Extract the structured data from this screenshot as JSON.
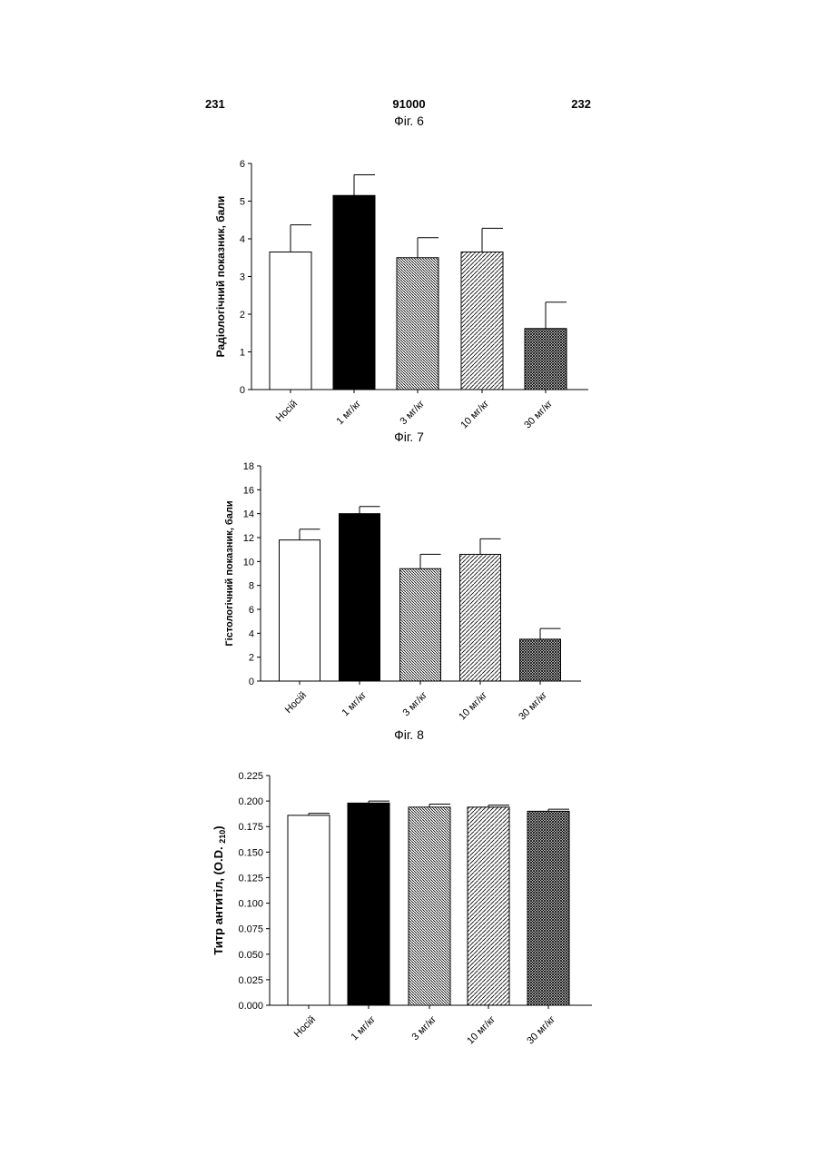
{
  "header": {
    "left": "231",
    "center": "91000",
    "right": "232"
  },
  "figures": [
    "Фіг. 6",
    "Фіг. 7",
    "Фіг. 8"
  ],
  "colors": {
    "ink": "#000000",
    "paper": "#ffffff"
  },
  "chart_data": [
    {
      "type": "bar",
      "categories": [
        "Носій",
        "1 мг/кг",
        "3 мг/кг",
        "10 мг/кг",
        "30 мг/кг"
      ],
      "values": [
        3.65,
        5.15,
        3.5,
        3.65,
        1.62
      ],
      "errors": [
        0.72,
        0.55,
        0.53,
        0.63,
        0.7
      ],
      "fills": [
        "white",
        "black",
        "diag-dense",
        "diag-wide",
        "crosshatch"
      ],
      "ylabel": "Радіологічний показник, бали",
      "xlabel": "",
      "ylim": [
        0,
        6
      ],
      "yticks": [
        0,
        1,
        2,
        3,
        4,
        5,
        6
      ],
      "grid": false
    },
    {
      "type": "bar",
      "categories": [
        "Носій",
        "1 мг/кг",
        "3 мг/кг",
        "10 мг/кг",
        "30 мг/кг"
      ],
      "values": [
        11.8,
        14.0,
        9.4,
        10.6,
        3.5
      ],
      "errors": [
        0.9,
        0.6,
        1.2,
        1.3,
        0.9
      ],
      "fills": [
        "white",
        "black",
        "diag-dense",
        "diag-wide",
        "crosshatch"
      ],
      "ylabel": "Гістологічний показник, бали",
      "xlabel": "",
      "ylim": [
        0,
        18
      ],
      "yticks": [
        0,
        2,
        4,
        6,
        8,
        10,
        12,
        14,
        16,
        18
      ],
      "grid": false
    },
    {
      "type": "bar",
      "categories": [
        "Носій",
        "1 мг/кг",
        "3 мг/кг",
        "10 мг/кг",
        "30 мг/кг"
      ],
      "values": [
        0.186,
        0.198,
        0.194,
        0.194,
        0.19
      ],
      "errors": [
        0.002,
        0.002,
        0.003,
        0.002,
        0.002
      ],
      "fills": [
        "white",
        "black",
        "diag-dense",
        "diag-wide",
        "crosshatch"
      ],
      "ylabel": "Титр антитіл, (O.D.",
      "ylabel_sub": "210",
      "ylabel_close": ")",
      "xlabel": "",
      "ylim": [
        0,
        0.225
      ],
      "yticks": [
        "0.000",
        "0.025",
        "0.050",
        "0.075",
        "0.100",
        "0.125",
        "0.150",
        "0.175",
        "0.200",
        "0.225"
      ],
      "grid": false
    }
  ]
}
